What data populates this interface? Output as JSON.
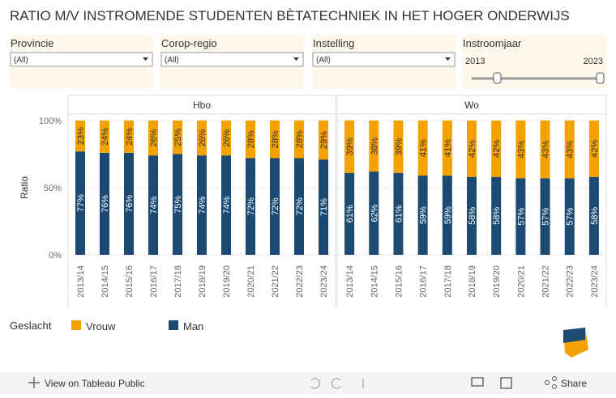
{
  "title": "RATIO M/V INSTROMENDE STUDENTEN BÈTATECHNIEK IN HET HOGER ONDERWIJS",
  "filters": [
    {
      "label": "Provincie",
      "value": "(All)"
    },
    {
      "label": "Corop-regio",
      "value": "(All)"
    },
    {
      "label": "Instelling",
      "value": "(All)"
    }
  ],
  "slider": {
    "label": "Instroomjaar",
    "min": 2013,
    "max": 2023
  },
  "footer": {
    "link": "View on Tableau Public",
    "share": "Share"
  },
  "chart_data": {
    "type": "bar",
    "stacked": true,
    "y_label": "Ratio",
    "ylim": [
      0,
      100
    ],
    "yticks": [
      {
        "value": 0,
        "label": "0%"
      },
      {
        "value": 50,
        "label": "50%"
      },
      {
        "value": 100,
        "label": "100%"
      }
    ],
    "grid": true,
    "legend_title": "Geslacht",
    "panels": [
      {
        "title": "Hbo",
        "categories": [
          "2013/14",
          "2014/15",
          "2015/16",
          "2016/17",
          "2017/18",
          "2018/19",
          "2019/20",
          "2020/21",
          "2021/22",
          "2022/23",
          "2023/24"
        ]
      },
      {
        "title": "Wo",
        "categories": [
          "2013/14",
          "2014/15",
          "2015/16",
          "2016/17",
          "2017/18",
          "2018/19",
          "2019/20",
          "2020/21",
          "2021/22",
          "2022/23",
          "2023/24"
        ]
      }
    ],
    "series": [
      {
        "name": "Vrouw",
        "color": "#f5a100",
        "values": [
          [
            23,
            24,
            24,
            26,
            25,
            26,
            26,
            28,
            28,
            28,
            29
          ],
          [
            39,
            38,
            39,
            41,
            41,
            42,
            42,
            43,
            43,
            43,
            42
          ]
        ],
        "value_labels": [
          [
            "23%",
            "24%",
            "24%",
            "26%",
            "25%",
            "26%",
            "26%",
            "28%",
            "28%",
            "28%",
            "29%"
          ],
          [
            "39%",
            "38%",
            "39%",
            "41%",
            "41%",
            "42%",
            "42%",
            "43%",
            "43%",
            "43%",
            "42%"
          ]
        ]
      },
      {
        "name": "Man",
        "color": "#1b4a72",
        "values": [
          [
            77,
            76,
            76,
            74,
            75,
            74,
            74,
            72,
            72,
            72,
            71
          ],
          [
            61,
            62,
            61,
            59,
            59,
            58,
            58,
            57,
            57,
            57,
            58
          ]
        ],
        "value_labels": [
          [
            "77%",
            "76%",
            "76%",
            "74%",
            "75%",
            "74%",
            "74%",
            "72%",
            "72%",
            "72%",
            "71%"
          ],
          [
            "61%",
            "62%",
            "61%",
            "59%",
            "59%",
            "58%",
            "58%",
            "57%",
            "57%",
            "57%",
            "58%"
          ]
        ]
      }
    ]
  }
}
